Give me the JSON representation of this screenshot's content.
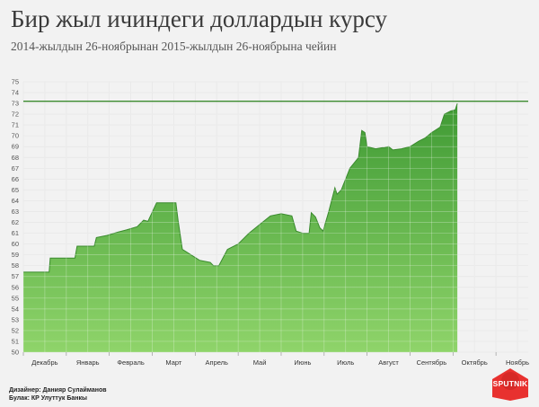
{
  "header": {
    "title": "Бир жыл ичиндеги доллардын курсу",
    "subtitle": "2014-жылдын 26-ноябрынан 2015-жылдын 26-ноябрына чейин"
  },
  "footer": {
    "designer": "Дизайнер: Данияр Сулайманов",
    "source": "Булак: КР Улуттук Банкы",
    "logo": "SPUTNIK"
  },
  "colors": {
    "fill_top": "#3f9a34",
    "fill_bottom": "#8fd46a",
    "line": "#3a8a2e",
    "grid": "#ffffff"
  },
  "chart_data": {
    "type": "area",
    "title": "Бир жыл ичиндеги доллардын курсу",
    "subtitle": "2014-жылдын 26-ноябрынан 2015-жылдын 26-ноябрына чейин",
    "xlabel": "",
    "ylabel": "",
    "ylim": [
      50,
      75
    ],
    "yticks": [
      50,
      51,
      52,
      53,
      54,
      55,
      56,
      57,
      58,
      59,
      60,
      61,
      62,
      63,
      64,
      65,
      66,
      67,
      68,
      69,
      70,
      71,
      72,
      73,
      74,
      75
    ],
    "months": [
      "Декабрь",
      "Январь",
      "Февраль",
      "Март",
      "Апрель",
      "Май",
      "Июнь",
      "Июль",
      "Август",
      "Сентябрь",
      "Октябрь",
      "Ноябрь"
    ],
    "grid": true,
    "reference_line": 73.2,
    "series": [
      {
        "points": [
          [
            0,
            57.4
          ],
          [
            0.5,
            57.4
          ],
          [
            1.2,
            57.4
          ],
          [
            1.25,
            58.7
          ],
          [
            2.4,
            58.7
          ],
          [
            2.5,
            59.8
          ],
          [
            3.3,
            59.8
          ],
          [
            3.4,
            60.6
          ],
          [
            3.9,
            60.8
          ],
          [
            4.4,
            61.1
          ],
          [
            4.8,
            61.3
          ],
          [
            5.3,
            61.6
          ],
          [
            5.6,
            62.2
          ],
          [
            5.8,
            62.1
          ],
          [
            6.2,
            63.8
          ],
          [
            7.1,
            63.8
          ],
          [
            7.2,
            62.2
          ],
          [
            7.4,
            59.5
          ],
          [
            7.8,
            59.0
          ],
          [
            8.2,
            58.5
          ],
          [
            8.7,
            58.3
          ],
          [
            8.85,
            58.0
          ],
          [
            9.1,
            58.0
          ],
          [
            9.5,
            59.5
          ],
          [
            10.0,
            60.0
          ],
          [
            10.5,
            61.0
          ],
          [
            11.0,
            61.8
          ],
          [
            11.5,
            62.6
          ],
          [
            12.0,
            62.8
          ],
          [
            12.5,
            62.6
          ],
          [
            12.7,
            61.2
          ],
          [
            13.0,
            61.0
          ],
          [
            13.3,
            61.0
          ],
          [
            13.4,
            62.9
          ],
          [
            13.6,
            62.5
          ],
          [
            13.8,
            61.5
          ],
          [
            13.95,
            61.2
          ],
          [
            14.2,
            62.9
          ],
          [
            14.5,
            65.2
          ],
          [
            14.6,
            64.6
          ],
          [
            14.8,
            65.0
          ],
          [
            15.0,
            66.0
          ],
          [
            15.2,
            67.0
          ],
          [
            15.4,
            67.5
          ],
          [
            15.6,
            68.0
          ],
          [
            15.75,
            70.5
          ],
          [
            15.9,
            70.3
          ],
          [
            16.0,
            69.0
          ],
          [
            16.4,
            68.8
          ],
          [
            16.7,
            68.9
          ],
          [
            16.8,
            68.9
          ],
          [
            17.0,
            69.0
          ],
          [
            17.2,
            68.7
          ],
          [
            17.6,
            68.8
          ],
          [
            18.0,
            69.0
          ],
          [
            18.4,
            69.5
          ],
          [
            18.7,
            69.8
          ],
          [
            19.0,
            70.3
          ],
          [
            19.4,
            70.8
          ],
          [
            19.6,
            72.0
          ],
          [
            19.9,
            72.3
          ],
          [
            20.1,
            72.4
          ],
          [
            20.2,
            73.0
          ]
        ]
      }
    ]
  }
}
